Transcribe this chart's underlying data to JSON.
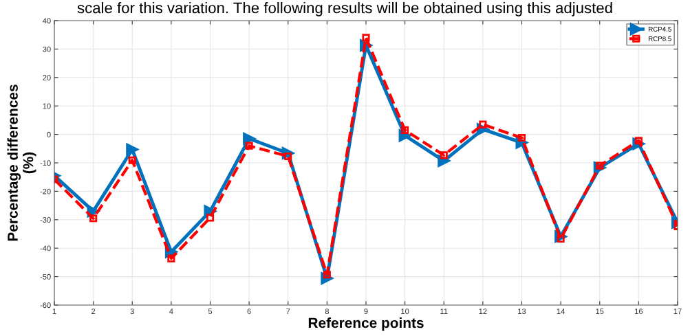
{
  "chart_data": {
    "type": "line",
    "annotations": [
      "scale for this variation. The following results will be obtained using this adjusted"
    ],
    "xlabel": "Reference points",
    "ylabel": "Percentage differences\n(%)",
    "x": [
      1,
      2,
      3,
      4,
      5,
      6,
      7,
      8,
      9,
      10,
      11,
      12,
      13,
      14,
      15,
      16,
      17
    ],
    "series": [
      {
        "name": "RCP4.5",
        "color": "#0072bd",
        "marker": "triangle",
        "line_style": "solid",
        "values": [
          -14.5,
          -27,
          -5.3,
          -41.3,
          -27,
          -1.5,
          -6.6,
          -50.6,
          31.3,
          -0.4,
          -9.3,
          1.8,
          -2.9,
          -35.9,
          -11.7,
          -3.3,
          -31
        ]
      },
      {
        "name": "RCP8.5",
        "color": "#ff0000",
        "marker": "square",
        "line_style": "dashed",
        "values": [
          -15.8,
          -29.5,
          -9.1,
          -43.6,
          -29.3,
          -4,
          -7.7,
          -49.3,
          34,
          1.5,
          -7.3,
          3.5,
          -1.2,
          -36.7,
          -11,
          -2.2,
          -32.3
        ]
      }
    ],
    "xlim": [
      1,
      17
    ],
    "xticks": [
      1,
      2,
      3,
      4,
      5,
      6,
      7,
      8,
      9,
      10,
      11,
      12,
      13,
      14,
      15,
      16,
      17
    ],
    "ylim": [
      -60,
      40
    ],
    "yticks": [
      -60,
      -50,
      -40,
      -30,
      -20,
      -10,
      0,
      10,
      20,
      30,
      40
    ],
    "grid": true,
    "legend": "top right"
  }
}
